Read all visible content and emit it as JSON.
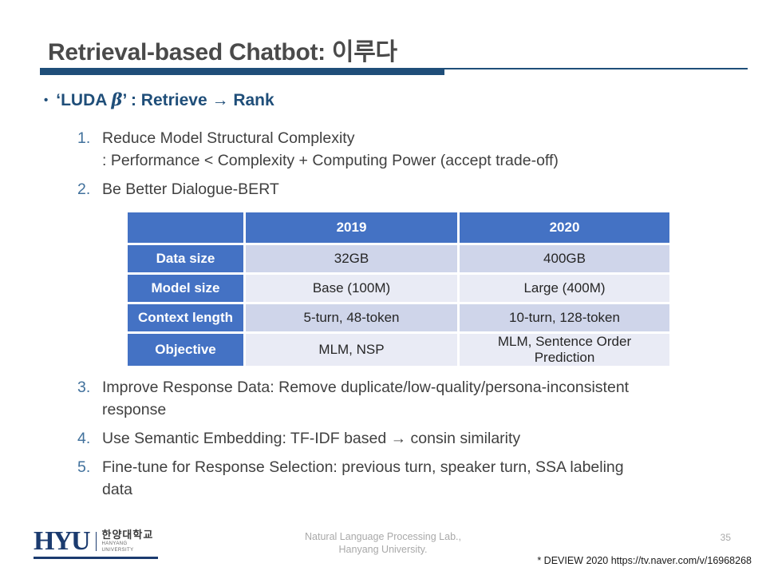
{
  "slide": {
    "title": "Retrieval-based Chatbot: 이루다",
    "accent_color": "#1F4E79",
    "heading": {
      "bullet": "•",
      "prefix": "‘LUDA ",
      "beta": "β",
      "suffix": "’ : Retrieve → Rank"
    },
    "items": [
      {
        "num": "1.",
        "lines": [
          "Reduce Model Structural Complexity",
          ": Performance < Complexity + Computing Power (accept trade-off)"
        ]
      },
      {
        "num": "2.",
        "lines": [
          "Be Better Dialogue-BERT"
        ]
      },
      {
        "num": "3.",
        "lines": [
          "Improve Response Data: Remove duplicate/low-quality/persona-inconsistent",
          "response"
        ]
      },
      {
        "num": "4.",
        "lines": [
          "Use Semantic Embedding: TF-IDF based → consin similarity"
        ]
      },
      {
        "num": "5.",
        "lines": [
          "Fine-tune for Response Selection: previous turn, speaker turn, SSA labeling",
          "data"
        ]
      }
    ],
    "table": {
      "header_bg": "#4472C4",
      "band_dark": "#CFD5EA",
      "band_light": "#E9EBF5",
      "headers": [
        "",
        "2019",
        "2020"
      ],
      "rows": [
        {
          "label": "Data size",
          "cells": [
            "32GB",
            "400GB"
          ]
        },
        {
          "label": "Model size",
          "cells": [
            "Base (100M)",
            "Large (400M)"
          ]
        },
        {
          "label": "Context length",
          "cells": [
            "5-turn, 48-token",
            "10-turn, 128-token"
          ]
        },
        {
          "label": "Objective",
          "cells": [
            "MLM, NSP",
            "MLM, Sentence Order Prediction"
          ]
        }
      ]
    },
    "footer": {
      "logo": {
        "acronym": "HYU",
        "korean": "한양대학교",
        "english": "HANYANG UNIVERSITY"
      },
      "lab_line1": "Natural Language Processing Lab.,",
      "lab_line2": "Hanyang University.",
      "page_number": "35",
      "credit": "* DEVIEW 2020 https://tv.naver.com/v/16968268"
    }
  }
}
